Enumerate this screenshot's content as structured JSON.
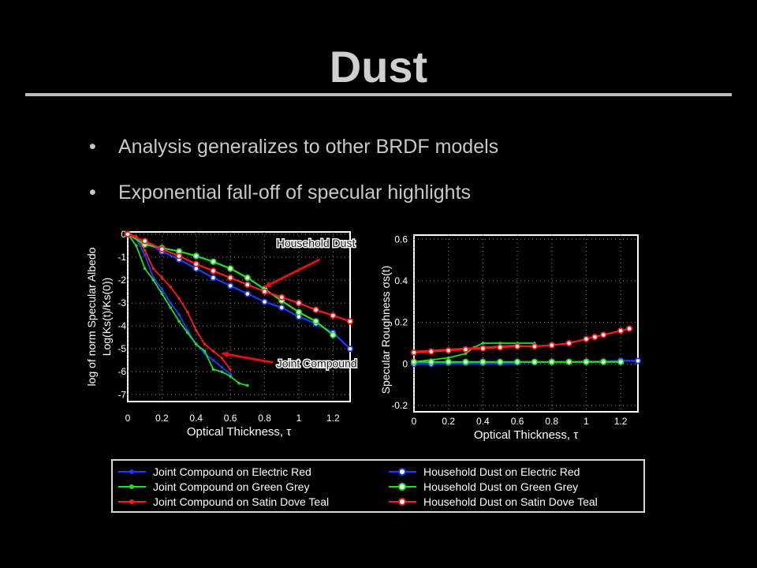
{
  "slide": {
    "title": "Dust",
    "bullets": [
      "Analysis generalizes to other BRDF models",
      "Exponential fall-off of specular highlights"
    ],
    "bullet_marker": "•"
  },
  "colors": {
    "background": "#000000",
    "plot_bg": "#ffffff",
    "grid": "#888888",
    "red": "#ff1a1a",
    "green": "#22dd22",
    "blue": "#1a3cff",
    "annotation_arrow": "#e01010"
  },
  "chart_data": [
    {
      "type": "line",
      "xlabel": "Optical Thickness, τ",
      "ylabel_lines": [
        "log of norm Specular Albedo",
        "Log(K_s(t)/K_s(0))"
      ],
      "ylabel_outer": "log of norm Specular Albedo",
      "ylabel_inner": "Log(Ks(t)/Ks(0))",
      "xlim": [
        0,
        1.3
      ],
      "ylim": [
        -7.3,
        0.1
      ],
      "grid": true,
      "xticks": [
        "0",
        "0.2",
        "0.4",
        "0.6",
        "0.8",
        "1",
        "1.2"
      ],
      "xtick_values": [
        0,
        0.2,
        0.4,
        0.6,
        0.8,
        1,
        1.2
      ],
      "yticks": [
        "0",
        "-1",
        "-2",
        "-3",
        "-4",
        "-5",
        "-6",
        "-7"
      ],
      "ytick_values": [
        0,
        -1,
        -2,
        -3,
        -4,
        -5,
        -6,
        -7
      ],
      "annotations": [
        {
          "text": "Household Dust",
          "x": 0.87,
          "y": -0.55,
          "arrow_to": [
            0.8,
            -2.3
          ]
        },
        {
          "text": "Joint Compound",
          "x": 0.87,
          "y": -5.8,
          "arrow_to": [
            0.55,
            -5.2
          ]
        }
      ],
      "series": [
        {
          "name": "Joint Compound on Electric Red",
          "color": "blue",
          "marker": "small",
          "x": [
            0,
            0.05,
            0.1,
            0.15,
            0.2,
            0.25,
            0.3,
            0.35,
            0.4,
            0.45,
            0.5,
            0.55,
            0.6
          ],
          "y": [
            0,
            -0.2,
            -0.9,
            -1.9,
            -2.4,
            -3.0,
            -3.5,
            -4.2,
            -4.8,
            -5.2,
            -5.5,
            -5.8,
            -6.1
          ]
        },
        {
          "name": "Joint Compound on Green Grey",
          "color": "green",
          "marker": "small",
          "x": [
            0,
            0.05,
            0.1,
            0.15,
            0.2,
            0.25,
            0.3,
            0.35,
            0.4,
            0.45,
            0.5,
            0.55,
            0.6,
            0.65,
            0.7
          ],
          "y": [
            0,
            -0.5,
            -1.5,
            -2.0,
            -2.6,
            -3.2,
            -3.8,
            -4.3,
            -4.8,
            -5.1,
            -5.9,
            -6.0,
            -6.2,
            -6.5,
            -6.6
          ]
        },
        {
          "name": "Joint Compound on Satin Dove Teal",
          "color": "red",
          "marker": "small",
          "x": [
            0,
            0.05,
            0.1,
            0.15,
            0.2,
            0.25,
            0.3,
            0.35,
            0.4,
            0.45,
            0.5,
            0.55,
            0.6
          ],
          "y": [
            0,
            -0.1,
            -0.7,
            -1.5,
            -1.9,
            -2.3,
            -2.8,
            -3.4,
            -4.2,
            -4.8,
            -5.1,
            -5.4,
            -5.9
          ]
        },
        {
          "name": "Household Dust on Electric Red",
          "color": "blue",
          "marker": "large",
          "x": [
            0,
            0.1,
            0.2,
            0.3,
            0.4,
            0.5,
            0.6,
            0.7,
            0.8,
            0.9,
            1.0,
            1.1,
            1.2,
            1.3
          ],
          "y": [
            0,
            -0.35,
            -0.75,
            -1.1,
            -1.5,
            -1.9,
            -2.25,
            -2.6,
            -2.95,
            -3.2,
            -3.6,
            -3.9,
            -4.3,
            -5.0
          ]
        },
        {
          "name": "Household Dust on Green Grey",
          "color": "green",
          "marker": "large",
          "x": [
            0,
            0.1,
            0.2,
            0.3,
            0.4,
            0.5,
            0.6,
            0.7,
            0.8,
            0.9,
            1.0,
            1.1,
            1.2
          ],
          "y": [
            0,
            -0.45,
            -0.6,
            -0.75,
            -0.95,
            -1.2,
            -1.5,
            -1.9,
            -2.4,
            -2.9,
            -3.4,
            -3.8,
            -4.4
          ]
        },
        {
          "name": "Household Dust on Satin Dove Teal",
          "color": "red",
          "marker": "large",
          "x": [
            0,
            0.1,
            0.2,
            0.3,
            0.4,
            0.5,
            0.6,
            0.7,
            0.8,
            0.9,
            1.0,
            1.1,
            1.2,
            1.3
          ],
          "y": [
            0,
            -0.3,
            -0.65,
            -0.95,
            -1.3,
            -1.6,
            -1.9,
            -2.2,
            -2.5,
            -2.75,
            -3.0,
            -3.3,
            -3.55,
            -3.8
          ]
        }
      ]
    },
    {
      "type": "line",
      "xlabel": "Optical Thickness, τ",
      "ylabel": "Specular Roughness σs(t)",
      "xlim": [
        0,
        1.3
      ],
      "ylim": [
        -0.23,
        0.62
      ],
      "grid": true,
      "xticks": [
        "0",
        "0.2",
        "0.4",
        "0.6",
        "0.8",
        "1",
        "1.2"
      ],
      "xtick_values": [
        0,
        0.2,
        0.4,
        0.6,
        0.8,
        1,
        1.2
      ],
      "yticks": [
        "0.6",
        "0.4",
        "0.2",
        "0",
        "-0.2"
      ],
      "ytick_values": [
        0.6,
        0.4,
        0.2,
        0,
        -0.2
      ],
      "series": [
        {
          "name": "Joint Compound on Electric Red",
          "color": "blue",
          "marker": "small",
          "x": [
            0,
            0.1,
            0.2,
            0.3,
            0.4,
            0.5,
            0.6
          ],
          "y": [
            0,
            0,
            0,
            0,
            0,
            0,
            0
          ]
        },
        {
          "name": "Joint Compound on Green Grey",
          "color": "green",
          "marker": "small",
          "x": [
            0,
            0.1,
            0.2,
            0.3,
            0.35,
            0.4,
            0.5,
            0.6,
            0.7
          ],
          "y": [
            0.01,
            0.02,
            0.03,
            0.05,
            0.08,
            0.1,
            0.1,
            0.1,
            0.1
          ]
        },
        {
          "name": "Joint Compound on Satin Dove Teal",
          "color": "red",
          "marker": "small",
          "x": [
            0,
            0.1,
            0.2,
            0.3,
            0.4,
            0.5,
            0.6
          ],
          "y": [
            0.06,
            0.065,
            0.07,
            0.075,
            0.08,
            0.085,
            0.09
          ]
        },
        {
          "name": "Household Dust on Electric Red",
          "color": "blue",
          "marker": "large",
          "x": [
            0,
            0.1,
            0.2,
            0.3,
            0.4,
            0.5,
            0.6,
            0.7,
            0.8,
            0.9,
            1.0,
            1.1,
            1.2,
            1.3
          ],
          "y": [
            0,
            0,
            0.005,
            0.005,
            0.005,
            0.005,
            0.008,
            0.008,
            0.01,
            0.01,
            0.012,
            0.012,
            0.015,
            0.015
          ]
        },
        {
          "name": "Household Dust on Green Grey",
          "color": "green",
          "marker": "large",
          "x": [
            0,
            0.1,
            0.2,
            0.3,
            0.4,
            0.5,
            0.6,
            0.7,
            0.8,
            0.9,
            1.0,
            1.1,
            1.2
          ],
          "y": [
            0.01,
            0.01,
            0.01,
            0.01,
            0.01,
            0.01,
            0.01,
            0.01,
            0.01,
            0.01,
            0.01,
            0.01,
            0.01
          ]
        },
        {
          "name": "Household Dust on Satin Dove Teal",
          "color": "red",
          "marker": "large",
          "x": [
            0,
            0.1,
            0.2,
            0.3,
            0.4,
            0.5,
            0.6,
            0.7,
            0.8,
            0.9,
            1.0,
            1.05,
            1.1,
            1.2,
            1.25
          ],
          "y": [
            0.055,
            0.06,
            0.065,
            0.07,
            0.075,
            0.08,
            0.085,
            0.085,
            0.09,
            0.1,
            0.12,
            0.13,
            0.14,
            0.16,
            0.17
          ]
        }
      ]
    }
  ],
  "legend": {
    "entries": [
      {
        "label": "Joint Compound on Electric Red",
        "color": "blue",
        "marker": "small"
      },
      {
        "label": "Household Dust on Electric Red",
        "color": "blue",
        "marker": "large"
      },
      {
        "label": "Joint Compound on Green Grey",
        "color": "green",
        "marker": "small"
      },
      {
        "label": "Household Dust on Green Grey",
        "color": "green",
        "marker": "large"
      },
      {
        "label": "Joint Compound on Satin Dove Teal",
        "color": "red",
        "marker": "small"
      },
      {
        "label": "Household Dust on Satin Dove Teal",
        "color": "red",
        "marker": "large"
      }
    ]
  }
}
